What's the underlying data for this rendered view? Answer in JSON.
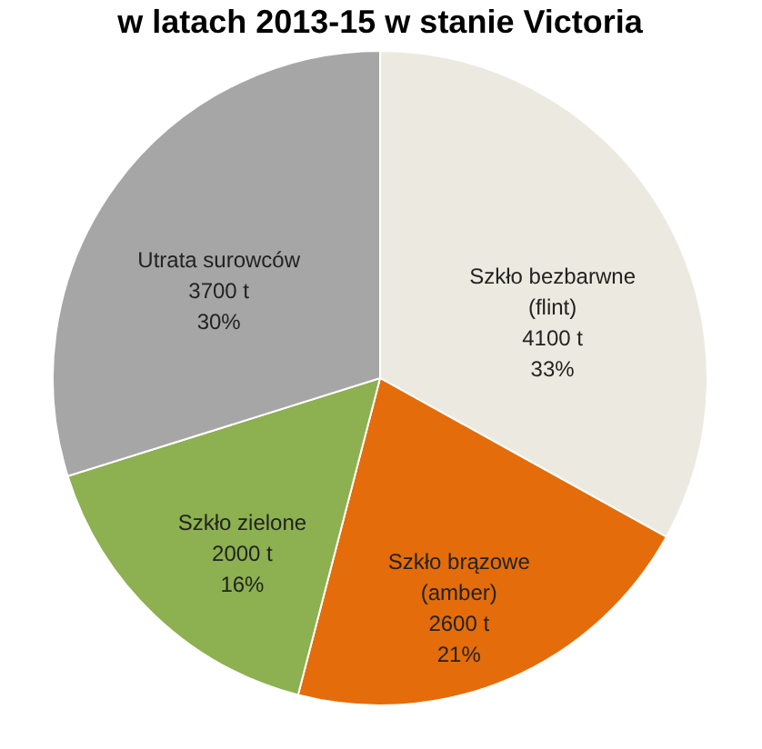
{
  "chart_data": {
    "type": "pie",
    "title": "w latach 2013-15 w stanie Victoria",
    "categories": [
      "Szkło bezbarwne (flint)",
      "Szkło brązowe (amber)",
      "Szkło zielone",
      "Utrata surowców"
    ],
    "values": [
      4100,
      2600,
      2000,
      3700
    ],
    "value_labels": [
      "4100 t\n33%",
      "2600 t\n21%",
      "2000 t\n16%",
      "3700 t\n30%"
    ],
    "colors": [
      "#eceae0",
      "#e46c0a",
      "#8db050",
      "#a6a6a6"
    ],
    "legend": false
  }
}
